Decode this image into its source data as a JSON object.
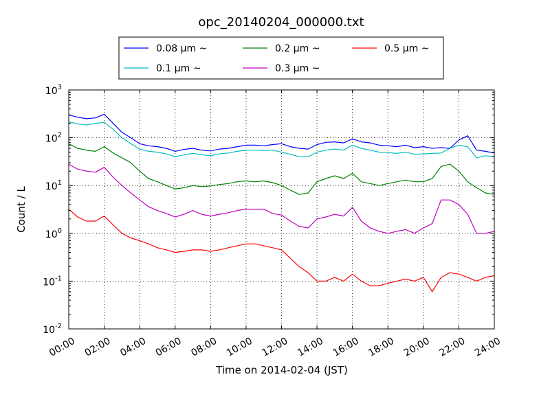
{
  "chart_data": {
    "type": "line",
    "title": "opc_20140204_000000.txt",
    "xlabel": "Time on 2014-02-04 (JST)",
    "ylabel": "Count / L",
    "yscale": "log",
    "ylim": [
      0.01,
      1000
    ],
    "xlim": [
      "00:00",
      "24:00"
    ],
    "grid": true,
    "legend_position": "top-center",
    "x_ticks": [
      "00:00",
      "02:00",
      "04:00",
      "06:00",
      "08:00",
      "10:00",
      "12:00",
      "14:00",
      "16:00",
      "18:00",
      "20:00",
      "22:00",
      "24:00"
    ],
    "y_ticks": [
      {
        "value": 0.01,
        "base": "10",
        "exp": "-2"
      },
      {
        "value": 0.1,
        "base": "10",
        "exp": "-1"
      },
      {
        "value": 1,
        "base": "10",
        "exp": "0"
      },
      {
        "value": 10,
        "base": "10",
        "exp": "1"
      },
      {
        "value": 100,
        "base": "10",
        "exp": "2"
      },
      {
        "value": 1000,
        "base": "10",
        "exp": "3"
      }
    ],
    "x": [
      "00:00",
      "00:30",
      "01:00",
      "01:30",
      "02:00",
      "02:30",
      "03:00",
      "03:30",
      "04:00",
      "04:30",
      "05:00",
      "05:30",
      "06:00",
      "06:30",
      "07:00",
      "07:30",
      "08:00",
      "08:30",
      "09:00",
      "09:30",
      "10:00",
      "10:30",
      "11:00",
      "11:30",
      "12:00",
      "12:30",
      "13:00",
      "13:30",
      "14:00",
      "14:30",
      "15:00",
      "15:30",
      "16:00",
      "16:30",
      "17:00",
      "17:30",
      "18:00",
      "18:30",
      "19:00",
      "19:30",
      "20:00",
      "20:30",
      "21:00",
      "21:30",
      "22:00",
      "22:30",
      "23:00",
      "23:30",
      "24:00"
    ],
    "series": [
      {
        "name": "0.08 μm ~",
        "color": "#0000ff",
        "values": [
          300,
          270,
          250,
          260,
          310,
          200,
          130,
          100,
          75,
          68,
          65,
          60,
          52,
          57,
          60,
          55,
          53,
          58,
          60,
          65,
          70,
          70,
          68,
          72,
          75,
          65,
          60,
          58,
          72,
          80,
          82,
          78,
          95,
          82,
          78,
          70,
          68,
          65,
          70,
          62,
          65,
          60,
          62,
          60,
          90,
          110,
          55,
          52,
          48
        ]
      },
      {
        "name": "0.1 μm ~",
        "color": "#00bfbf",
        "values": [
          215,
          195,
          185,
          200,
          210,
          150,
          100,
          75,
          58,
          52,
          50,
          46,
          40,
          44,
          47,
          44,
          42,
          46,
          48,
          52,
          55,
          55,
          54,
          55,
          50,
          45,
          40,
          40,
          50,
          55,
          58,
          55,
          70,
          60,
          55,
          50,
          49,
          47,
          50,
          45,
          46,
          47,
          48,
          60,
          70,
          65,
          38,
          42,
          40
        ]
      },
      {
        "name": "0.2 μm ~",
        "color": "#008000",
        "values": [
          75,
          60,
          55,
          52,
          65,
          48,
          38,
          30,
          20,
          14,
          12,
          10,
          8.5,
          9,
          10,
          9.5,
          9.8,
          10.5,
          11,
          12,
          12.5,
          12,
          12.5,
          11.5,
          10,
          8,
          6.5,
          7,
          12,
          14,
          16,
          14,
          18,
          12,
          11,
          10,
          11,
          12,
          13,
          12,
          12,
          14,
          25,
          28,
          20,
          12,
          9,
          7,
          6.5
        ]
      },
      {
        "name": "0.3 μm ~",
        "color": "#bf00bf",
        "values": [
          28,
          22,
          20,
          19,
          24,
          15,
          10,
          7,
          5,
          3.6,
          3,
          2.6,
          2.2,
          2.5,
          3,
          2.5,
          2.3,
          2.5,
          2.7,
          3,
          3.2,
          3.2,
          3.2,
          2.6,
          2.4,
          1.8,
          1.4,
          1.3,
          2,
          2.2,
          2.5,
          2.3,
          3.5,
          1.8,
          1.3,
          1.1,
          1,
          1.1,
          1.2,
          1,
          1.3,
          1.6,
          5,
          5,
          4,
          2.5,
          1,
          1,
          1.1
        ]
      },
      {
        "name": "0.5 μm ~",
        "color": "#ff0000",
        "values": [
          3.2,
          2.2,
          1.8,
          1.8,
          2.3,
          1.5,
          1,
          0.8,
          0.7,
          0.6,
          0.5,
          0.45,
          0.4,
          0.42,
          0.45,
          0.45,
          0.42,
          0.45,
          0.5,
          0.55,
          0.6,
          0.6,
          0.55,
          0.5,
          0.45,
          0.3,
          0.2,
          0.15,
          0.1,
          0.1,
          0.12,
          0.1,
          0.14,
          0.1,
          0.08,
          0.08,
          0.09,
          0.1,
          0.11,
          0.1,
          0.12,
          0.06,
          0.12,
          0.15,
          0.14,
          0.12,
          0.1,
          0.12,
          0.13
        ]
      }
    ]
  }
}
